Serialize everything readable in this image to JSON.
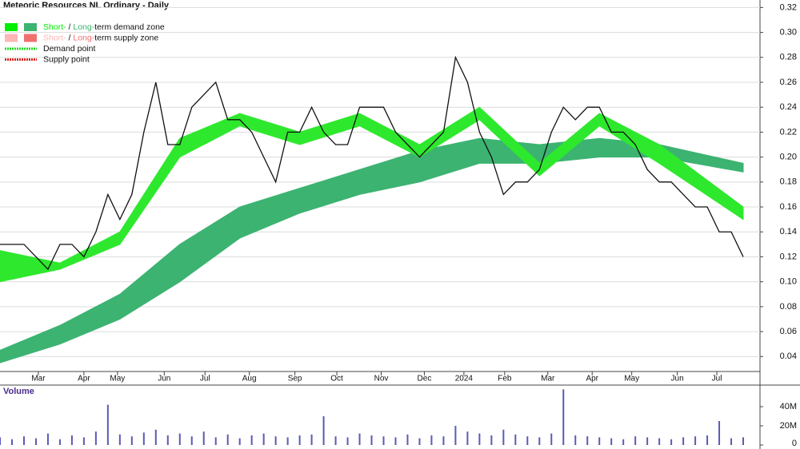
{
  "chart_data": [
    {
      "type": "line",
      "title": "Meteoric Resources NL Ordinary - Daily",
      "color": "#111111",
      "values": [
        0.13,
        0.13,
        0.13,
        0.12,
        0.11,
        0.13,
        0.13,
        0.12,
        0.14,
        0.17,
        0.15,
        0.17,
        0.22,
        0.26,
        0.21,
        0.21,
        0.24,
        0.25,
        0.26,
        0.23,
        0.23,
        0.22,
        0.2,
        0.18,
        0.22,
        0.22,
        0.24,
        0.22,
        0.21,
        0.21,
        0.24,
        0.24,
        0.24,
        0.22,
        0.21,
        0.2,
        0.21,
        0.22,
        0.28,
        0.26,
        0.22,
        0.2,
        0.17,
        0.18,
        0.18,
        0.19,
        0.22,
        0.24,
        0.23,
        0.24,
        0.24,
        0.22,
        0.22,
        0.21,
        0.19,
        0.18,
        0.18,
        0.17,
        0.16,
        0.16,
        0.14,
        0.14,
        0.12
      ],
      "xlim": [
        0,
        63.4
      ],
      "xticks": [
        {
          "value": 3.2,
          "label": "Mar"
        },
        {
          "value": 7,
          "label": "Apr"
        },
        {
          "value": 9.8,
          "label": "May"
        },
        {
          "value": 13.7,
          "label": "Jun"
        },
        {
          "value": 17.1,
          "label": "Jul"
        },
        {
          "value": 20.8,
          "label": "Aug"
        },
        {
          "value": 24.6,
          "label": "Sep"
        },
        {
          "value": 28.1,
          "label": "Oct"
        },
        {
          "value": 31.8,
          "label": "Nov"
        },
        {
          "value": 35.4,
          "label": "Dec"
        },
        {
          "value": 38.7,
          "label": "2024"
        },
        {
          "value": 42.1,
          "label": "Feb"
        },
        {
          "value": 45.7,
          "label": "Mar"
        },
        {
          "value": 49.4,
          "label": "Apr"
        },
        {
          "value": 52.7,
          "label": "May"
        },
        {
          "value": 56.5,
          "label": "Jun"
        },
        {
          "value": 59.8,
          "label": "Jul"
        }
      ],
      "ylim": [
        0.028,
        0.326
      ],
      "yticks": [
        0.04,
        0.06,
        0.08,
        {
          "value": 0.1,
          "label": "0.10"
        },
        0.12,
        0.14,
        0.16,
        0.18,
        {
          "value": 0.2,
          "label": "0.20"
        },
        0.22,
        0.24,
        0.26,
        0.28,
        {
          "value": 0.3,
          "label": "0.30"
        },
        0.32
      ],
      "zones": [
        {
          "color": "#3cb371",
          "x": [
            0,
            5,
            10,
            15,
            20,
            25,
            30,
            35,
            40,
            45,
            50,
            55,
            62
          ],
          "upper": [
            0.045,
            0.065,
            0.09,
            0.13,
            0.16,
            0.175,
            0.19,
            0.205,
            0.215,
            0.21,
            0.215,
            0.21,
            0.195
          ],
          "lower": [
            0.035,
            0.05,
            0.07,
            0.1,
            0.135,
            0.155,
            0.17,
            0.18,
            0.195,
            0.195,
            0.2,
            0.2,
            0.188
          ]
        },
        {
          "color": "#2ee82e",
          "x": [
            0,
            5,
            10,
            15,
            20,
            25,
            30,
            35,
            40,
            45,
            50,
            55,
            62
          ],
          "upper": [
            0.125,
            0.115,
            0.14,
            0.215,
            0.235,
            0.22,
            0.235,
            0.21,
            0.24,
            0.195,
            0.235,
            0.21,
            0.16
          ],
          "lower": [
            0.1,
            0.11,
            0.13,
            0.2,
            0.225,
            0.21,
            0.225,
            0.2,
            0.23,
            0.185,
            0.225,
            0.195,
            0.15
          ]
        }
      ],
      "legend": [
        {
          "parts": [
            "Short-",
            " / ",
            "Long-",
            "term demand zone"
          ],
          "colors": [
            "#00ee00",
            "#3cb371"
          ]
        },
        {
          "parts": [
            "Short-",
            " / ",
            "Long-",
            "term supply zone"
          ],
          "colors": [
            "#ffb6b6",
            "#f07070"
          ]
        },
        {
          "parts": [
            "Demand point"
          ],
          "colors": [
            "#22dd22"
          ]
        },
        {
          "parts": [
            "Supply point"
          ],
          "colors": [
            "#dd2222"
          ]
        }
      ]
    },
    {
      "type": "bar",
      "title": "Volume",
      "color": "#5a5ab4",
      "values": [
        8000000,
        6000000,
        9000000,
        7000000,
        12000000,
        6000000,
        10000000,
        8000000,
        14000000,
        42000000,
        11000000,
        9000000,
        13000000,
        16000000,
        10000000,
        12000000,
        9000000,
        14000000,
        8000000,
        11000000,
        7000000,
        10000000,
        12000000,
        9000000,
        8000000,
        10000000,
        11000000,
        30000000,
        9000000,
        8000000,
        12000000,
        10000000,
        9000000,
        8000000,
        11000000,
        7000000,
        10000000,
        9000000,
        20000000,
        14000000,
        12000000,
        10000000,
        16000000,
        11000000,
        9000000,
        8000000,
        12000000,
        58000000,
        10000000,
        9000000,
        8000000,
        7000000,
        6000000,
        9000000,
        8000000,
        7000000,
        6000000,
        8000000,
        9000000,
        10000000,
        25000000,
        7000000,
        8000000
      ],
      "ylim": [
        0,
        62500000
      ],
      "yticks": [
        0,
        {
          "value": 20000000,
          "label": "20M"
        },
        {
          "value": 40000000,
          "label": "40M"
        }
      ]
    }
  ]
}
